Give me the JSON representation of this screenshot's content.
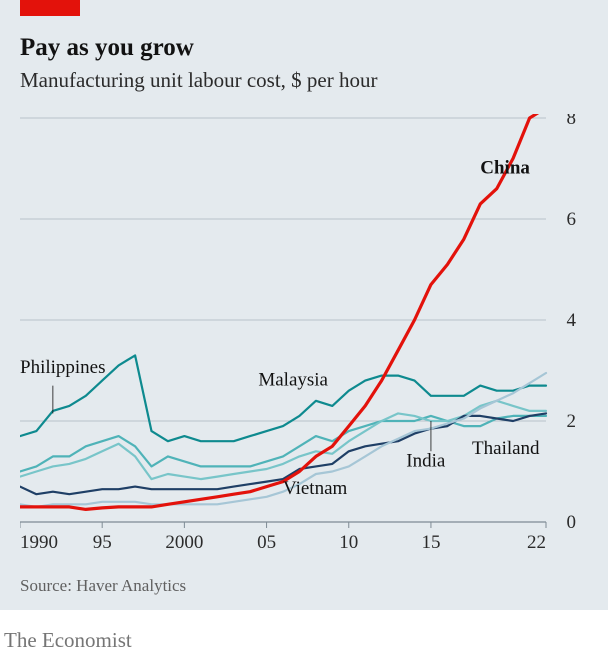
{
  "panel_bg": "#e4eaee",
  "accent_tab_color": "#e3120b",
  "title": "Pay as you grow",
  "title_fontsize": 25,
  "subtitle": "Manufacturing unit labour cost, $ per hour",
  "subtitle_fontsize": 21,
  "source": "Source: Haver Analytics",
  "source_fontsize": 17,
  "footer": "The Economist",
  "footer_fontsize": 21,
  "chart": {
    "type": "line",
    "x_domain": [
      1990,
      2022
    ],
    "xticks": [
      {
        "v": 1990,
        "label": "1990"
      },
      {
        "v": 1995,
        "label": "95"
      },
      {
        "v": 2000,
        "label": "2000"
      },
      {
        "v": 2005,
        "label": "05"
      },
      {
        "v": 2010,
        "label": "10"
      },
      {
        "v": 2015,
        "label": "15"
      },
      {
        "v": 2022,
        "label": "22"
      }
    ],
    "y_domain": [
      0,
      8
    ],
    "yticks": [
      0,
      2,
      4,
      6,
      8
    ],
    "grid_color": "#b9c2c9",
    "baseline_color": "#7e8b94",
    "line_width": 2.2,
    "series": [
      {
        "name": "China",
        "color": "#e3120b",
        "width": 3.2,
        "label": {
          "text": "China",
          "x": 2018,
          "y": 6.9,
          "bold": true
        },
        "points": [
          [
            1990,
            0.3
          ],
          [
            1991,
            0.3
          ],
          [
            1992,
            0.3
          ],
          [
            1993,
            0.3
          ],
          [
            1994,
            0.25
          ],
          [
            1995,
            0.28
          ],
          [
            1996,
            0.3
          ],
          [
            1997,
            0.3
          ],
          [
            1998,
            0.3
          ],
          [
            1999,
            0.35
          ],
          [
            2000,
            0.4
          ],
          [
            2001,
            0.45
          ],
          [
            2002,
            0.5
          ],
          [
            2003,
            0.55
          ],
          [
            2004,
            0.6
          ],
          [
            2005,
            0.7
          ],
          [
            2006,
            0.8
          ],
          [
            2007,
            1.0
          ],
          [
            2008,
            1.3
          ],
          [
            2009,
            1.5
          ],
          [
            2010,
            1.9
          ],
          [
            2011,
            2.3
          ],
          [
            2012,
            2.8
          ],
          [
            2013,
            3.4
          ],
          [
            2014,
            4.0
          ],
          [
            2015,
            4.7
          ],
          [
            2016,
            5.1
          ],
          [
            2017,
            5.6
          ],
          [
            2018,
            6.3
          ],
          [
            2019,
            6.6
          ],
          [
            2020,
            7.2
          ],
          [
            2021,
            8.0
          ],
          [
            2022,
            8.2
          ]
        ]
      },
      {
        "name": "Malaysia",
        "color": "#0e8a8f",
        "width": 2.2,
        "label": {
          "text": "Malaysia",
          "x": 2004.5,
          "y": 2.7
        },
        "points": [
          [
            1990,
            1.7
          ],
          [
            1991,
            1.8
          ],
          [
            1992,
            2.2
          ],
          [
            1993,
            2.3
          ],
          [
            1994,
            2.5
          ],
          [
            1995,
            2.8
          ],
          [
            1996,
            3.1
          ],
          [
            1997,
            3.3
          ],
          [
            1998,
            1.8
          ],
          [
            1999,
            1.6
          ],
          [
            2000,
            1.7
          ],
          [
            2001,
            1.6
          ],
          [
            2002,
            1.6
          ],
          [
            2003,
            1.6
          ],
          [
            2004,
            1.7
          ],
          [
            2005,
            1.8
          ],
          [
            2006,
            1.9
          ],
          [
            2007,
            2.1
          ],
          [
            2008,
            2.4
          ],
          [
            2009,
            2.3
          ],
          [
            2010,
            2.6
          ],
          [
            2011,
            2.8
          ],
          [
            2012,
            2.9
          ],
          [
            2013,
            2.9
          ],
          [
            2014,
            2.8
          ],
          [
            2015,
            2.5
          ],
          [
            2016,
            2.5
          ],
          [
            2017,
            2.5
          ],
          [
            2018,
            2.7
          ],
          [
            2019,
            2.6
          ],
          [
            2020,
            2.6
          ],
          [
            2021,
            2.7
          ],
          [
            2022,
            2.7
          ]
        ]
      },
      {
        "name": "Philippines",
        "color": "#4fb3b8",
        "width": 2.2,
        "label": {
          "text": "Philippines",
          "x": 1990,
          "y": 2.95,
          "lead": [
            [
              1992,
              2.7
            ],
            [
              1992,
              2.15
            ]
          ]
        },
        "points": [
          [
            1990,
            1.0
          ],
          [
            1991,
            1.1
          ],
          [
            1992,
            1.3
          ],
          [
            1993,
            1.3
          ],
          [
            1994,
            1.5
          ],
          [
            1995,
            1.6
          ],
          [
            1996,
            1.7
          ],
          [
            1997,
            1.5
          ],
          [
            1998,
            1.1
          ],
          [
            1999,
            1.3
          ],
          [
            2000,
            1.2
          ],
          [
            2001,
            1.1
          ],
          [
            2002,
            1.1
          ],
          [
            2003,
            1.1
          ],
          [
            2004,
            1.1
          ],
          [
            2005,
            1.2
          ],
          [
            2006,
            1.3
          ],
          [
            2007,
            1.5
          ],
          [
            2008,
            1.7
          ],
          [
            2009,
            1.6
          ],
          [
            2010,
            1.8
          ],
          [
            2011,
            1.9
          ],
          [
            2012,
            2.0
          ],
          [
            2013,
            2.0
          ],
          [
            2014,
            2.0
          ],
          [
            2015,
            2.1
          ],
          [
            2016,
            2.0
          ],
          [
            2017,
            1.9
          ],
          [
            2018,
            1.9
          ],
          [
            2019,
            2.05
          ],
          [
            2020,
            2.1
          ],
          [
            2021,
            2.1
          ],
          [
            2022,
            2.1
          ]
        ]
      },
      {
        "name": "Thailand",
        "color": "#78c5c9",
        "width": 2.2,
        "label": {
          "text": "Thailand",
          "x": 2017.5,
          "y": 1.35
        },
        "points": [
          [
            1990,
            0.9
          ],
          [
            1991,
            1.0
          ],
          [
            1992,
            1.1
          ],
          [
            1993,
            1.15
          ],
          [
            1994,
            1.25
          ],
          [
            1995,
            1.4
          ],
          [
            1996,
            1.55
          ],
          [
            1997,
            1.3
          ],
          [
            1998,
            0.85
          ],
          [
            1999,
            0.95
          ],
          [
            2000,
            0.9
          ],
          [
            2001,
            0.85
          ],
          [
            2002,
            0.9
          ],
          [
            2003,
            0.95
          ],
          [
            2004,
            1.0
          ],
          [
            2005,
            1.05
          ],
          [
            2006,
            1.15
          ],
          [
            2007,
            1.3
          ],
          [
            2008,
            1.4
          ],
          [
            2009,
            1.35
          ],
          [
            2010,
            1.6
          ],
          [
            2011,
            1.8
          ],
          [
            2012,
            2.0
          ],
          [
            2013,
            2.15
          ],
          [
            2014,
            2.1
          ],
          [
            2015,
            2.0
          ],
          [
            2016,
            2.0
          ],
          [
            2017,
            2.1
          ],
          [
            2018,
            2.3
          ],
          [
            2019,
            2.4
          ],
          [
            2020,
            2.3
          ],
          [
            2021,
            2.2
          ],
          [
            2022,
            2.2
          ]
        ]
      },
      {
        "name": "India",
        "color": "#1f3f66",
        "width": 2.2,
        "label": {
          "text": "India",
          "x": 2013.5,
          "y": 1.1,
          "lead": [
            [
              2015,
              1.4
            ],
            [
              2015,
              2.0
            ]
          ]
        },
        "points": [
          [
            1990,
            0.7
          ],
          [
            1991,
            0.55
          ],
          [
            1992,
            0.6
          ],
          [
            1993,
            0.55
          ],
          [
            1994,
            0.6
          ],
          [
            1995,
            0.65
          ],
          [
            1996,
            0.65
          ],
          [
            1997,
            0.7
          ],
          [
            1998,
            0.65
          ],
          [
            1999,
            0.65
          ],
          [
            2000,
            0.65
          ],
          [
            2001,
            0.65
          ],
          [
            2002,
            0.65
          ],
          [
            2003,
            0.7
          ],
          [
            2004,
            0.75
          ],
          [
            2005,
            0.8
          ],
          [
            2006,
            0.85
          ],
          [
            2007,
            1.05
          ],
          [
            2008,
            1.1
          ],
          [
            2009,
            1.15
          ],
          [
            2010,
            1.4
          ],
          [
            2011,
            1.5
          ],
          [
            2012,
            1.55
          ],
          [
            2013,
            1.6
          ],
          [
            2014,
            1.75
          ],
          [
            2015,
            1.85
          ],
          [
            2016,
            1.9
          ],
          [
            2017,
            2.1
          ],
          [
            2018,
            2.1
          ],
          [
            2019,
            2.05
          ],
          [
            2020,
            2.0
          ],
          [
            2021,
            2.1
          ],
          [
            2022,
            2.15
          ]
        ]
      },
      {
        "name": "Vietnam",
        "color": "#a6c6d6",
        "width": 2.2,
        "label": {
          "text": "Vietnam",
          "x": 2006,
          "y": 0.55
        },
        "points": [
          [
            1990,
            0.35
          ],
          [
            1991,
            0.3
          ],
          [
            1992,
            0.35
          ],
          [
            1993,
            0.35
          ],
          [
            1994,
            0.35
          ],
          [
            1995,
            0.4
          ],
          [
            1996,
            0.4
          ],
          [
            1997,
            0.4
          ],
          [
            1998,
            0.35
          ],
          [
            1999,
            0.35
          ],
          [
            2000,
            0.35
          ],
          [
            2001,
            0.35
          ],
          [
            2002,
            0.35
          ],
          [
            2003,
            0.4
          ],
          [
            2004,
            0.45
          ],
          [
            2005,
            0.5
          ],
          [
            2006,
            0.6
          ],
          [
            2007,
            0.75
          ],
          [
            2008,
            0.95
          ],
          [
            2009,
            1.0
          ],
          [
            2010,
            1.1
          ],
          [
            2011,
            1.3
          ],
          [
            2012,
            1.5
          ],
          [
            2013,
            1.65
          ],
          [
            2014,
            1.8
          ],
          [
            2015,
            1.85
          ],
          [
            2016,
            1.95
          ],
          [
            2017,
            2.05
          ],
          [
            2018,
            2.25
          ],
          [
            2019,
            2.4
          ],
          [
            2020,
            2.55
          ],
          [
            2021,
            2.75
          ],
          [
            2022,
            2.95
          ]
        ]
      }
    ]
  }
}
